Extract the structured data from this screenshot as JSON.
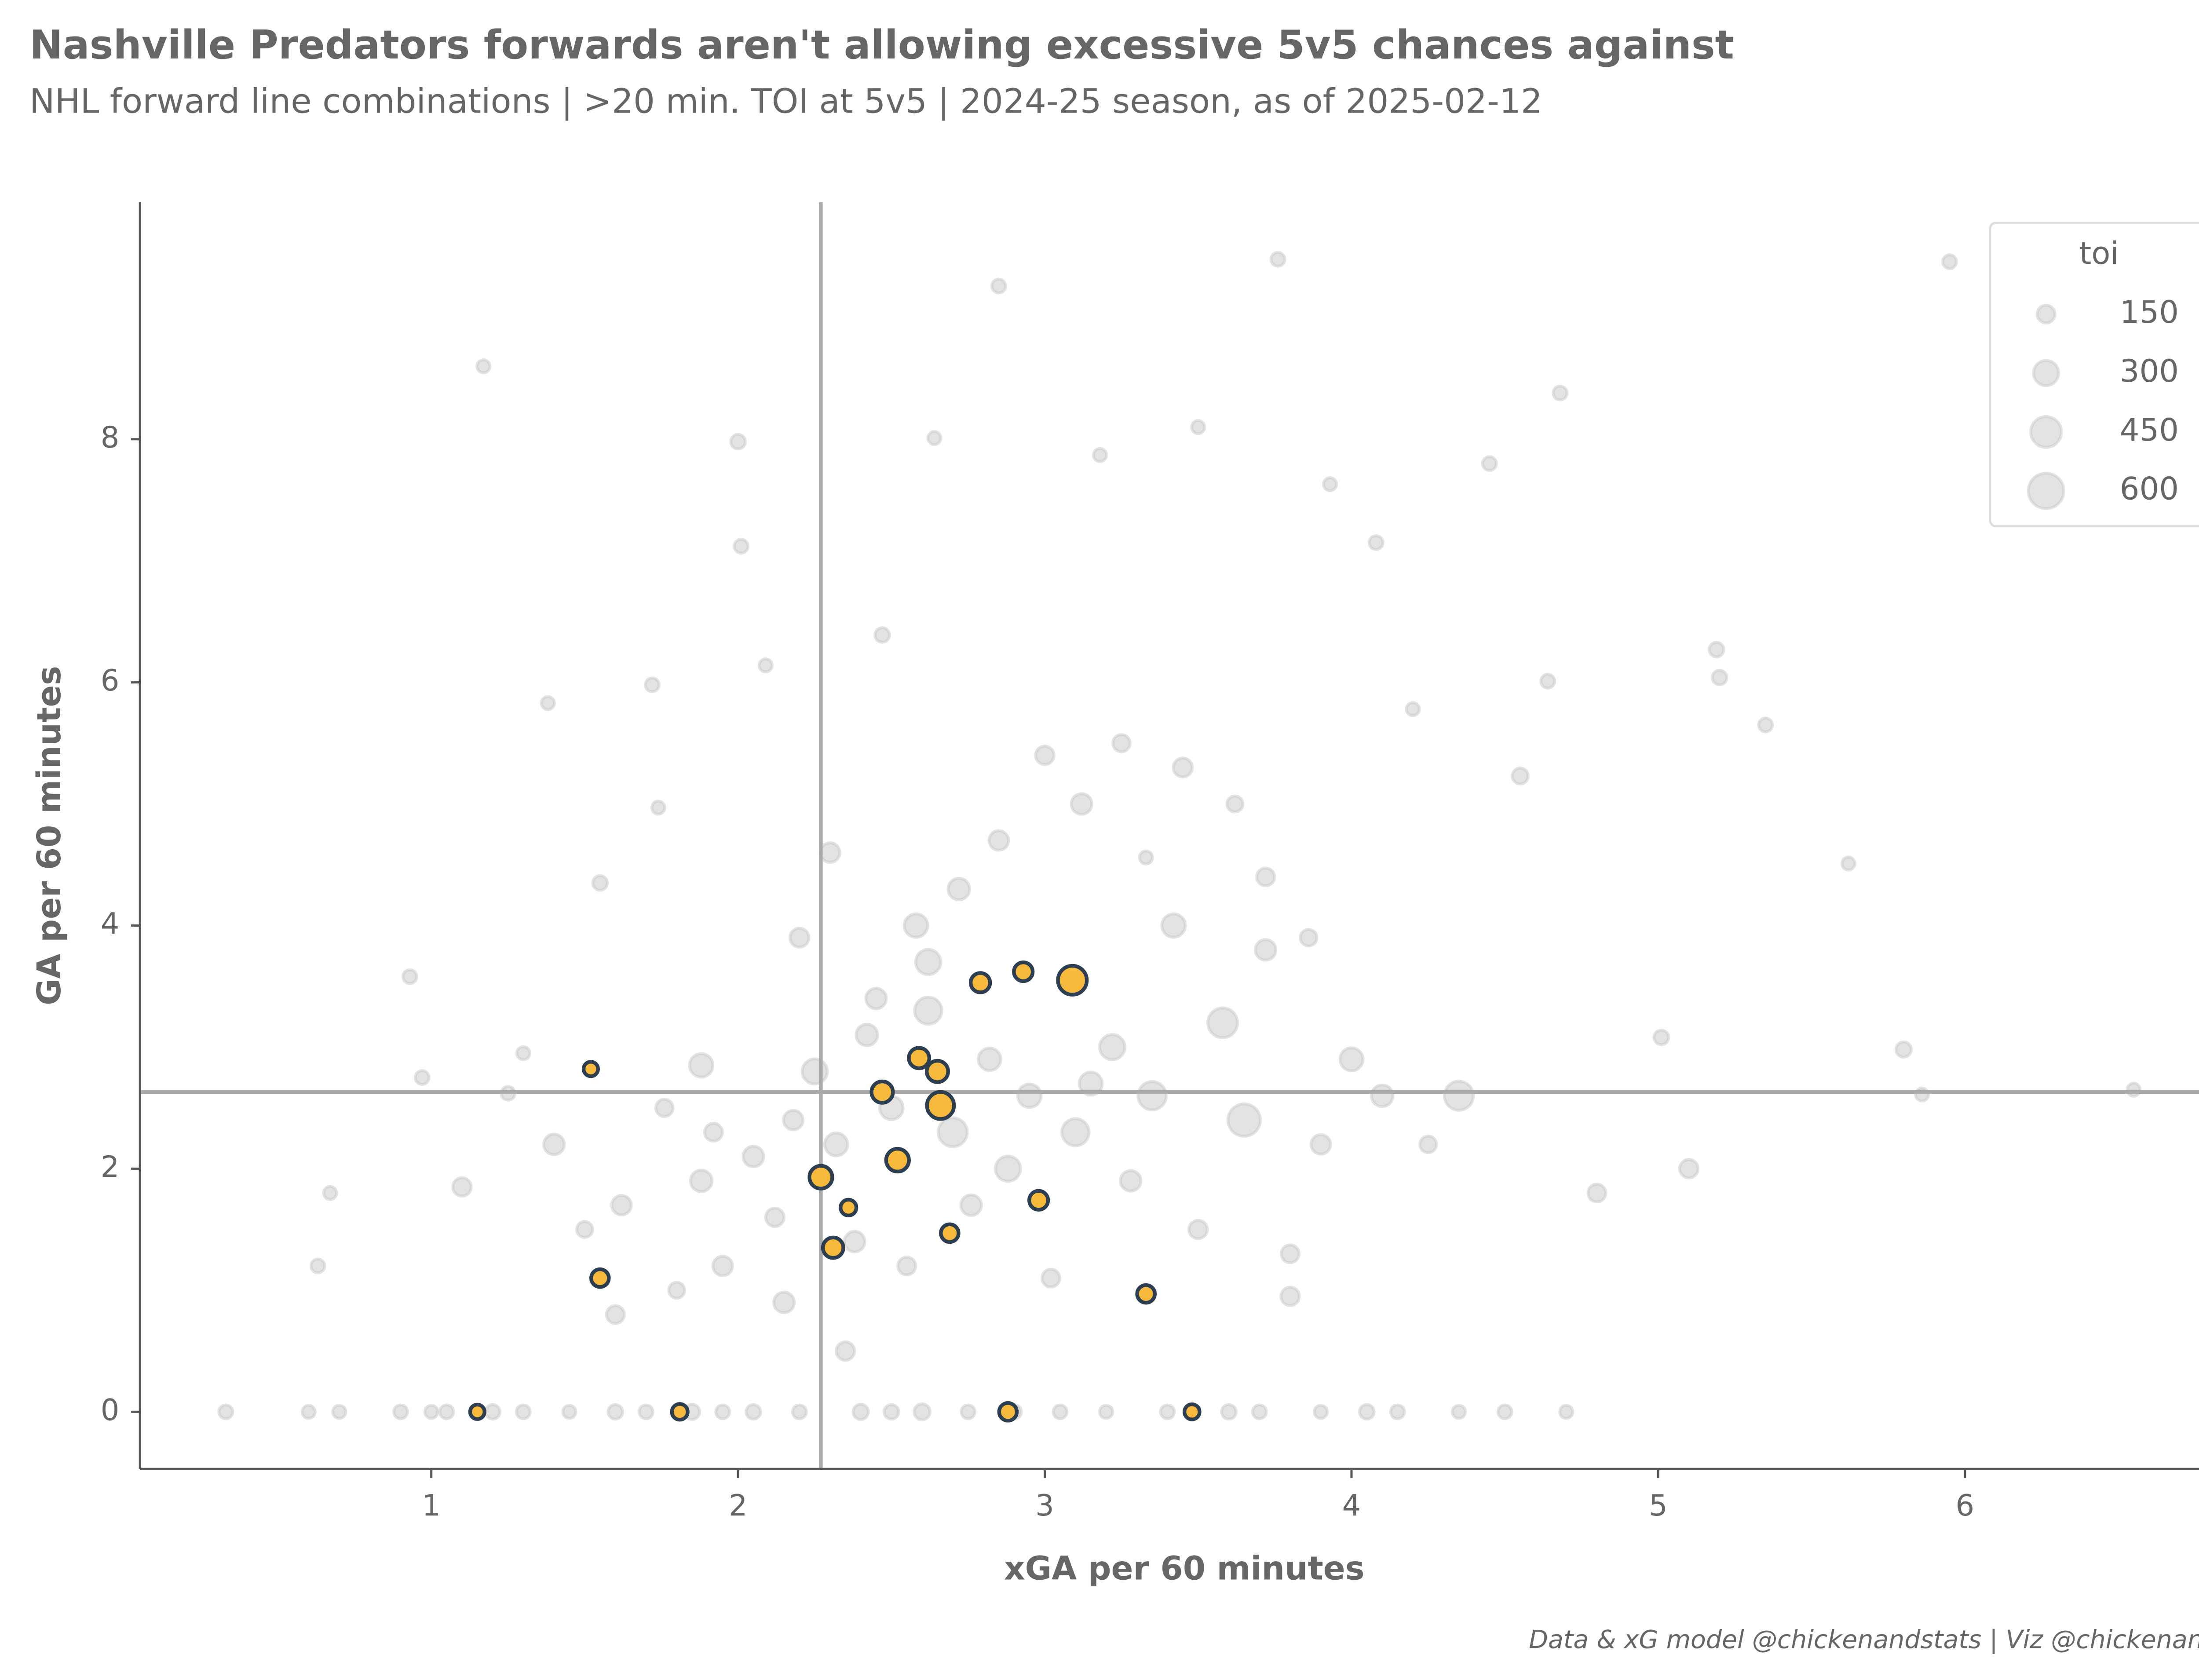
{
  "chart_data": {
    "type": "scatter",
    "title": "Nashville Predators forwards aren't allowing excessive 5v5 chances against",
    "subtitle": "NHL forward line combinations | >20 min. TOI at 5v5 | 2024-25 season, as of 2025-02-12",
    "x_label": "xGA per 60 minutes",
    "y_label": "GA per 60 minutes",
    "footer": "Data & xG model @chickenandstats | Viz @chickenandstats",
    "xlim": [
      0.05,
      6.86
    ],
    "ylim": [
      -0.47,
      9.95
    ],
    "xticks": [
      1,
      2,
      3,
      4,
      5,
      6
    ],
    "yticks": [
      0,
      2,
      4,
      6,
      8
    ],
    "vline": 2.27,
    "hline": 2.63,
    "legend": {
      "title": "toi",
      "sizes": [
        150,
        300,
        450,
        600
      ],
      "position": "upper right"
    },
    "series": [
      {
        "color": "#cccccc",
        "opacity": 0.55,
        "x": [
          0.33,
          0.6,
          0.7,
          0.9,
          1.0,
          1.05,
          1.2,
          1.3,
          1.45,
          1.6,
          1.7,
          1.85,
          1.95,
          2.05,
          2.2,
          2.4,
          2.5,
          2.6,
          2.75,
          2.9,
          3.05,
          3.2,
          3.4,
          3.6,
          3.7,
          3.9,
          4.05,
          4.15,
          4.35,
          4.5,
          4.7,
          0.63,
          0.67,
          0.93,
          0.97,
          1.17,
          1.3,
          1.38,
          1.55,
          1.72,
          1.74,
          2.0,
          2.01,
          2.09,
          2.47,
          2.64,
          2.85,
          3.18,
          3.5,
          3.76,
          3.93,
          4.08,
          4.2,
          4.68,
          4.64,
          5.19,
          5.2,
          5.35,
          5.62,
          5.95,
          6.55,
          5.8,
          5.86,
          5.01,
          4.55,
          4.45,
          3.33,
          1.1,
          1.25,
          1.4,
          1.5,
          1.62,
          1.76,
          1.88,
          1.92,
          2.05,
          2.12,
          2.18,
          2.25,
          2.32,
          2.38,
          2.42,
          2.5,
          2.55,
          2.62,
          2.7,
          2.76,
          2.82,
          2.88,
          2.95,
          3.02,
          3.1,
          3.15,
          3.22,
          3.28,
          3.35,
          3.42,
          3.5,
          3.58,
          3.65,
          3.72,
          3.8,
          3.9,
          4.0,
          4.1,
          1.6,
          1.8,
          1.95,
          2.15,
          2.35,
          2.45,
          2.58,
          2.62,
          2.72,
          2.85,
          3.0,
          3.25,
          3.45,
          3.62,
          3.72,
          3.86,
          1.88,
          2.2,
          2.3,
          3.12,
          3.8,
          4.25,
          4.35,
          4.8,
          5.1
        ],
        "y": [
          0,
          0,
          0,
          0,
          0,
          0,
          0,
          0,
          0,
          0,
          0,
          0,
          0,
          0,
          0,
          0,
          0,
          0,
          0,
          0,
          0,
          0,
          0,
          0,
          0,
          0,
          0,
          0,
          0,
          0,
          0,
          1.2,
          1.8,
          3.58,
          2.75,
          8.6,
          2.95,
          5.83,
          4.35,
          5.98,
          4.97,
          7.98,
          7.12,
          6.14,
          6.39,
          8.01,
          9.26,
          7.87,
          8.1,
          9.48,
          7.63,
          7.15,
          5.78,
          8.38,
          6.01,
          6.27,
          6.04,
          5.65,
          4.51,
          9.46,
          2.65,
          2.98,
          2.61,
          3.08,
          5.23,
          7.8,
          4.56,
          1.85,
          2.62,
          2.2,
          1.5,
          1.7,
          2.5,
          1.9,
          2.3,
          2.1,
          1.6,
          2.4,
          2.8,
          2.2,
          1.4,
          3.1,
          2.5,
          1.2,
          3.3,
          2.3,
          1.7,
          2.9,
          2.0,
          2.6,
          1.1,
          2.3,
          2.7,
          3.0,
          1.9,
          2.6,
          4.0,
          1.5,
          3.2,
          2.4,
          3.8,
          1.3,
          2.2,
          2.9,
          2.6,
          0.8,
          1.0,
          1.2,
          0.9,
          0.5,
          3.4,
          4.0,
          3.7,
          4.3,
          4.7,
          5.4,
          5.5,
          5.3,
          5.0,
          4.4,
          3.9,
          2.85,
          3.9,
          4.6,
          5.0,
          0.95,
          2.2,
          2.6,
          1.8,
          2.0
        ],
        "size": [
          90,
          80,
          80,
          90,
          80,
          90,
          100,
          90,
          80,
          100,
          90,
          110,
          90,
          100,
          90,
          110,
          100,
          120,
          90,
          100,
          90,
          80,
          90,
          100,
          90,
          80,
          100,
          90,
          80,
          90,
          80,
          90,
          80,
          90,
          90,
          80,
          80,
          80,
          100,
          90,
          80,
          100,
          90,
          80,
          100,
          80,
          90,
          80,
          80,
          90,
          80,
          90,
          80,
          90,
          90,
          100,
          100,
          90,
          80,
          90,
          80,
          110,
          80,
          100,
          120,
          90,
          80,
          160,
          90,
          200,
          120,
          180,
          140,
          220,
          150,
          200,
          160,
          180,
          300,
          250,
          200,
          220,
          260,
          150,
          350,
          400,
          200,
          240,
          300,
          260,
          150,
          350,
          250,
          300,
          200,
          380,
          260,
          160,
          420,
          500,
          200,
          150,
          180,
          250,
          220,
          150,
          120,
          180,
          200,
          160,
          200,
          260,
          300,
          220,
          180,
          160,
          140,
          170,
          120,
          150,
          130,
          260,
          170,
          180,
          200,
          160,
          130,
          400,
          150,
          160
        ]
      },
      {
        "color": "#f6b93b",
        "edge": "#2c3e50",
        "opacity": 1,
        "x": [
          1.52,
          1.55,
          1.15,
          1.81,
          2.27,
          2.31,
          2.36,
          2.47,
          2.52,
          2.59,
          2.65,
          2.66,
          2.69,
          2.79,
          2.93,
          2.98,
          3.09,
          2.88,
          3.33,
          3.48
        ],
        "y": [
          2.82,
          1.1,
          0,
          0,
          1.93,
          1.35,
          1.68,
          2.63,
          2.07,
          2.91,
          2.8,
          2.52,
          1.47,
          3.53,
          3.62,
          1.74,
          3.55,
          0,
          0.97,
          0
        ],
        "size": [
          100,
          150,
          100,
          120,
          250,
          200,
          120,
          220,
          250,
          200,
          220,
          350,
          150,
          180,
          170,
          170,
          400,
          150,
          150,
          110
        ]
      }
    ]
  }
}
